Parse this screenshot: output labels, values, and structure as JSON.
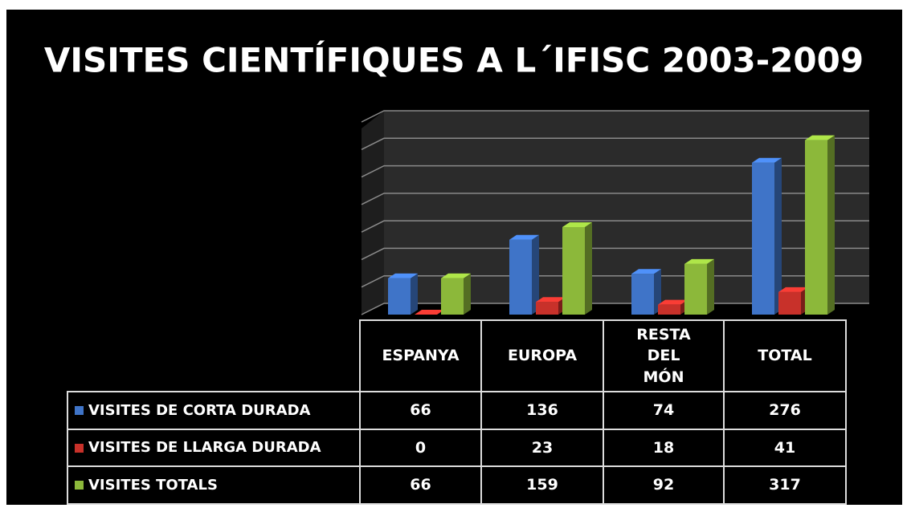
{
  "chart_data": {
    "type": "bar",
    "title": "VISITES CIENTÍFIQUES A L´IFISC 2003-2009",
    "categories": [
      "ESPANYA",
      "EUROPA",
      "RESTA DEL MÓN",
      "TOTAL"
    ],
    "series": [
      {
        "name": "VISITES DE CORTA DURADA",
        "color": "#3f74c8",
        "values": [
          66,
          136,
          74,
          276
        ]
      },
      {
        "name": "VISITES DE LLARGA DURADA",
        "color": "#c8312a",
        "values": [
          0,
          23,
          18,
          41
        ]
      },
      {
        "name": "VISITES TOTALS",
        "color": "#8cb83a",
        "values": [
          66,
          159,
          92,
          317
        ]
      }
    ],
    "ylim": [
      0,
      350
    ],
    "yticks": [
      0,
      50,
      100,
      150,
      200,
      250,
      300,
      350
    ],
    "grid": true
  }
}
